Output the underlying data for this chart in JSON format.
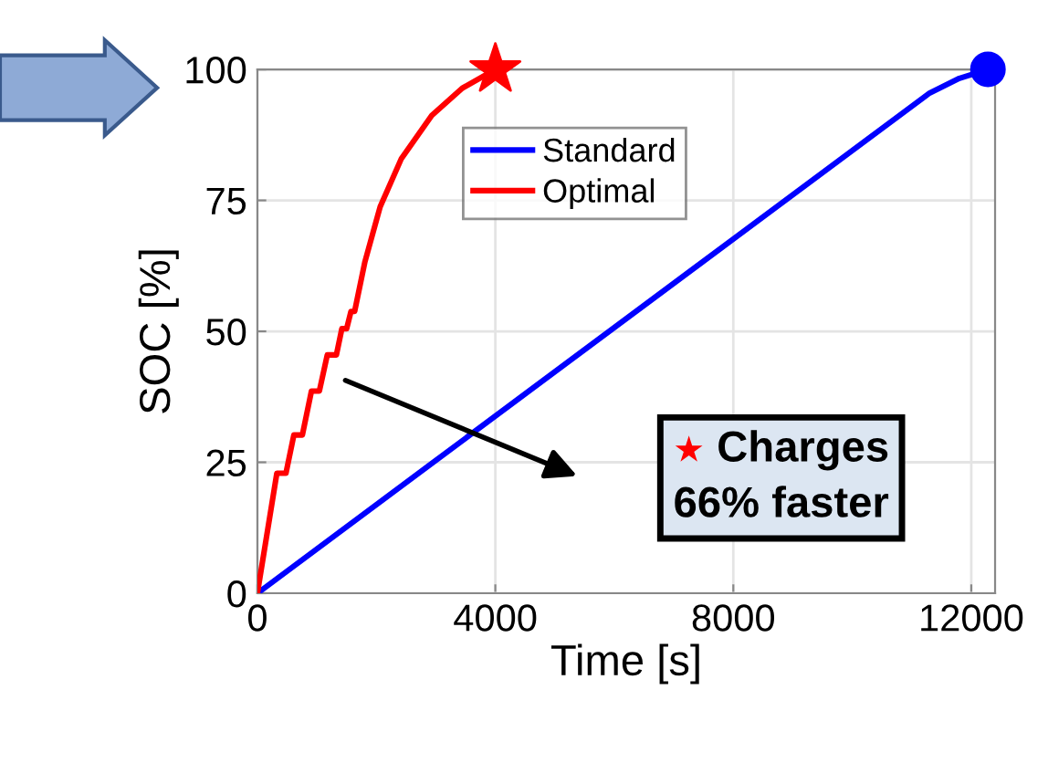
{
  "chart_data": {
    "type": "line",
    "xlabel": "Time [s]",
    "ylabel": "SOC [%]",
    "xlim": [
      0,
      12400
    ],
    "ylim": [
      0,
      100
    ],
    "xticks": [
      0,
      4000,
      8000,
      12000
    ],
    "yticks": [
      0,
      25,
      50,
      75,
      100
    ],
    "grid": true,
    "legend": "top",
    "series": [
      {
        "name": "Standard",
        "color": "#0000ff",
        "x": [
          0,
          4873,
          11300,
          11800,
          12280
        ],
        "values": [
          0,
          41.2,
          95.5,
          98.3,
          100
        ]
      },
      {
        "name": "Optimal",
        "color": "#ff0000",
        "x": [
          0,
          327,
          480,
          613,
          756,
          909,
          1042,
          1175,
          1328,
          1420,
          1500,
          1573,
          1635,
          1808,
          2064,
          2421,
          2931,
          3442,
          4000
        ],
        "values": [
          0,
          22.9,
          22.9,
          30.2,
          30.2,
          38.6,
          38.6,
          45.5,
          45.5,
          50.5,
          50.5,
          53.8,
          53.8,
          63.3,
          73.8,
          83,
          91.2,
          96.4,
          100
        ]
      },
      {
        "type": "scatter",
        "marker": "star",
        "color": "#ff0000",
        "x": [
          4000
        ],
        "values": [
          100
        ]
      },
      {
        "type": "scatter",
        "marker": "circle",
        "color": "#0000ff",
        "x": [
          12280
        ],
        "values": [
          100
        ]
      }
    ],
    "annotations": [
      "★ Charges\n66% faster"
    ]
  }
}
